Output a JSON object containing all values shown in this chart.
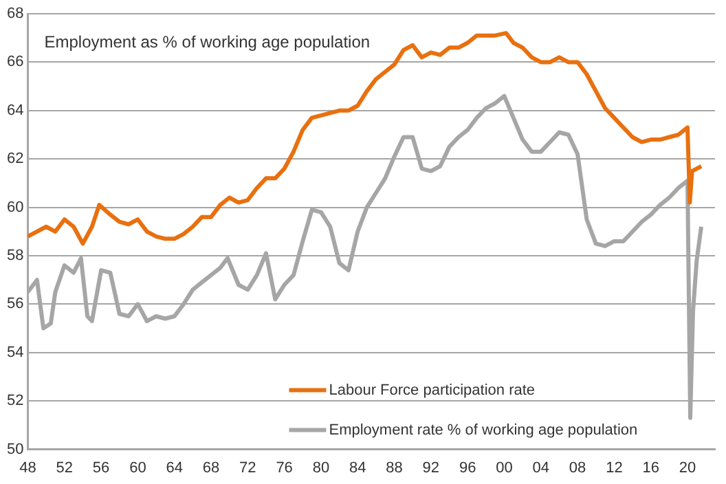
{
  "chart_data": {
    "type": "line",
    "title": "Employment as % of working age population",
    "xlim": [
      1948,
      2023
    ],
    "xticks": [
      {
        "value": 1948,
        "label": "48"
      },
      {
        "value": 1952,
        "label": "52"
      },
      {
        "value": 1956,
        "label": "56"
      },
      {
        "value": 1960,
        "label": "60"
      },
      {
        "value": 1964,
        "label": "64"
      },
      {
        "value": 1968,
        "label": "68"
      },
      {
        "value": 1972,
        "label": "72"
      },
      {
        "value": 1976,
        "label": "76"
      },
      {
        "value": 1980,
        "label": "80"
      },
      {
        "value": 1984,
        "label": "84"
      },
      {
        "value": 1988,
        "label": "88"
      },
      {
        "value": 1992,
        "label": "92"
      },
      {
        "value": 1996,
        "label": "96"
      },
      {
        "value": 2000,
        "label": "00"
      },
      {
        "value": 2004,
        "label": "04"
      },
      {
        "value": 2008,
        "label": "08"
      },
      {
        "value": 2012,
        "label": "12"
      },
      {
        "value": 2016,
        "label": "16"
      },
      {
        "value": 2020,
        "label": "20"
      }
    ],
    "ylim": [
      50,
      68
    ],
    "yticks": [
      50,
      52,
      54,
      56,
      58,
      60,
      62,
      64,
      66,
      68
    ],
    "grid": "y",
    "legend": "bottom",
    "marker": "none",
    "line_style": "solid",
    "series": [
      {
        "name": "Labour Force participation rate",
        "color": "#e8700f",
        "x": [
          1948,
          1950,
          1951,
          1952,
          1953,
          1954,
          1955,
          1955.8,
          1957,
          1958,
          1959,
          1960,
          1961,
          1962,
          1963,
          1964,
          1965,
          1966,
          1967,
          1968,
          1969,
          1970,
          1971,
          1972,
          1973,
          1974,
          1975,
          1976,
          1977,
          1978,
          1979,
          1980,
          1981,
          1982,
          1983,
          1984,
          1985,
          1986,
          1987,
          1988,
          1989,
          1990,
          1991,
          1992,
          1993,
          1994,
          1995,
          1996,
          1997,
          1998,
          1999,
          2000.2,
          2001,
          2002,
          2003,
          2004,
          2005,
          2006,
          2007,
          2008,
          2009,
          2010,
          2011,
          2012,
          2013,
          2014,
          2015,
          2016,
          2017,
          2018,
          2019,
          2020,
          2020.25,
          2020.5,
          2021,
          2021.5
        ],
        "values": [
          58.8,
          59.2,
          59.0,
          59.5,
          59.2,
          58.5,
          59.2,
          60.1,
          59.7,
          59.4,
          59.3,
          59.5,
          59.0,
          58.8,
          58.7,
          58.7,
          58.9,
          59.2,
          59.6,
          59.6,
          60.1,
          60.4,
          60.2,
          60.3,
          60.8,
          61.2,
          61.2,
          61.6,
          62.3,
          63.2,
          63.7,
          63.8,
          63.9,
          64.0,
          64.0,
          64.2,
          64.8,
          65.3,
          65.6,
          65.9,
          66.5,
          66.7,
          66.2,
          66.4,
          66.3,
          66.6,
          66.6,
          66.8,
          67.1,
          67.1,
          67.1,
          67.2,
          66.8,
          66.6,
          66.2,
          66.0,
          66.0,
          66.2,
          66.0,
          66.0,
          65.5,
          64.8,
          64.1,
          63.7,
          63.3,
          62.9,
          62.7,
          62.8,
          62.8,
          62.9,
          63.0,
          63.3,
          60.2,
          61.5,
          61.6,
          61.7
        ]
      },
      {
        "name": "Employment rate % of working age population",
        "color": "#a6a6a6",
        "x": [
          1948,
          1949,
          1949.7,
          1950.5,
          1951,
          1952,
          1953,
          1953.8,
          1954.5,
          1955,
          1956,
          1957,
          1958,
          1959,
          1960,
          1961,
          1962,
          1963,
          1964,
          1965,
          1966,
          1967,
          1968,
          1969,
          1969.8,
          1971,
          1972,
          1973,
          1974,
          1975,
          1976,
          1977,
          1978,
          1979,
          1980,
          1981,
          1982,
          1983,
          1984,
          1985,
          1986,
          1987,
          1988,
          1989,
          1990,
          1991,
          1992,
          1993,
          1994,
          1995,
          1996,
          1997,
          1998,
          1999,
          2000,
          2001,
          2002,
          2003,
          2004,
          2005,
          2006,
          2007,
          2008,
          2009,
          2010,
          2011,
          2012,
          2013,
          2014,
          2015,
          2016,
          2017,
          2018,
          2019,
          2020,
          2020.3,
          2020.6,
          2021,
          2021.5
        ],
        "values": [
          56.5,
          57.0,
          55.0,
          55.2,
          56.5,
          57.6,
          57.3,
          57.9,
          55.5,
          55.3,
          57.4,
          57.3,
          55.6,
          55.5,
          56.0,
          55.3,
          55.5,
          55.4,
          55.5,
          56.0,
          56.6,
          56.9,
          57.2,
          57.5,
          57.9,
          56.8,
          56.6,
          57.2,
          58.1,
          56.2,
          56.8,
          57.2,
          58.6,
          59.9,
          59.8,
          59.2,
          57.7,
          57.4,
          59.0,
          60.0,
          60.6,
          61.2,
          62.1,
          62.9,
          62.9,
          61.6,
          61.5,
          61.7,
          62.5,
          62.9,
          63.2,
          63.7,
          64.1,
          64.3,
          64.6,
          63.7,
          62.8,
          62.3,
          62.3,
          62.7,
          63.1,
          63.0,
          62.2,
          59.5,
          58.5,
          58.4,
          58.6,
          58.6,
          59.0,
          59.4,
          59.7,
          60.1,
          60.4,
          60.8,
          61.1,
          51.3,
          55.7,
          57.8,
          59.2
        ]
      }
    ]
  }
}
